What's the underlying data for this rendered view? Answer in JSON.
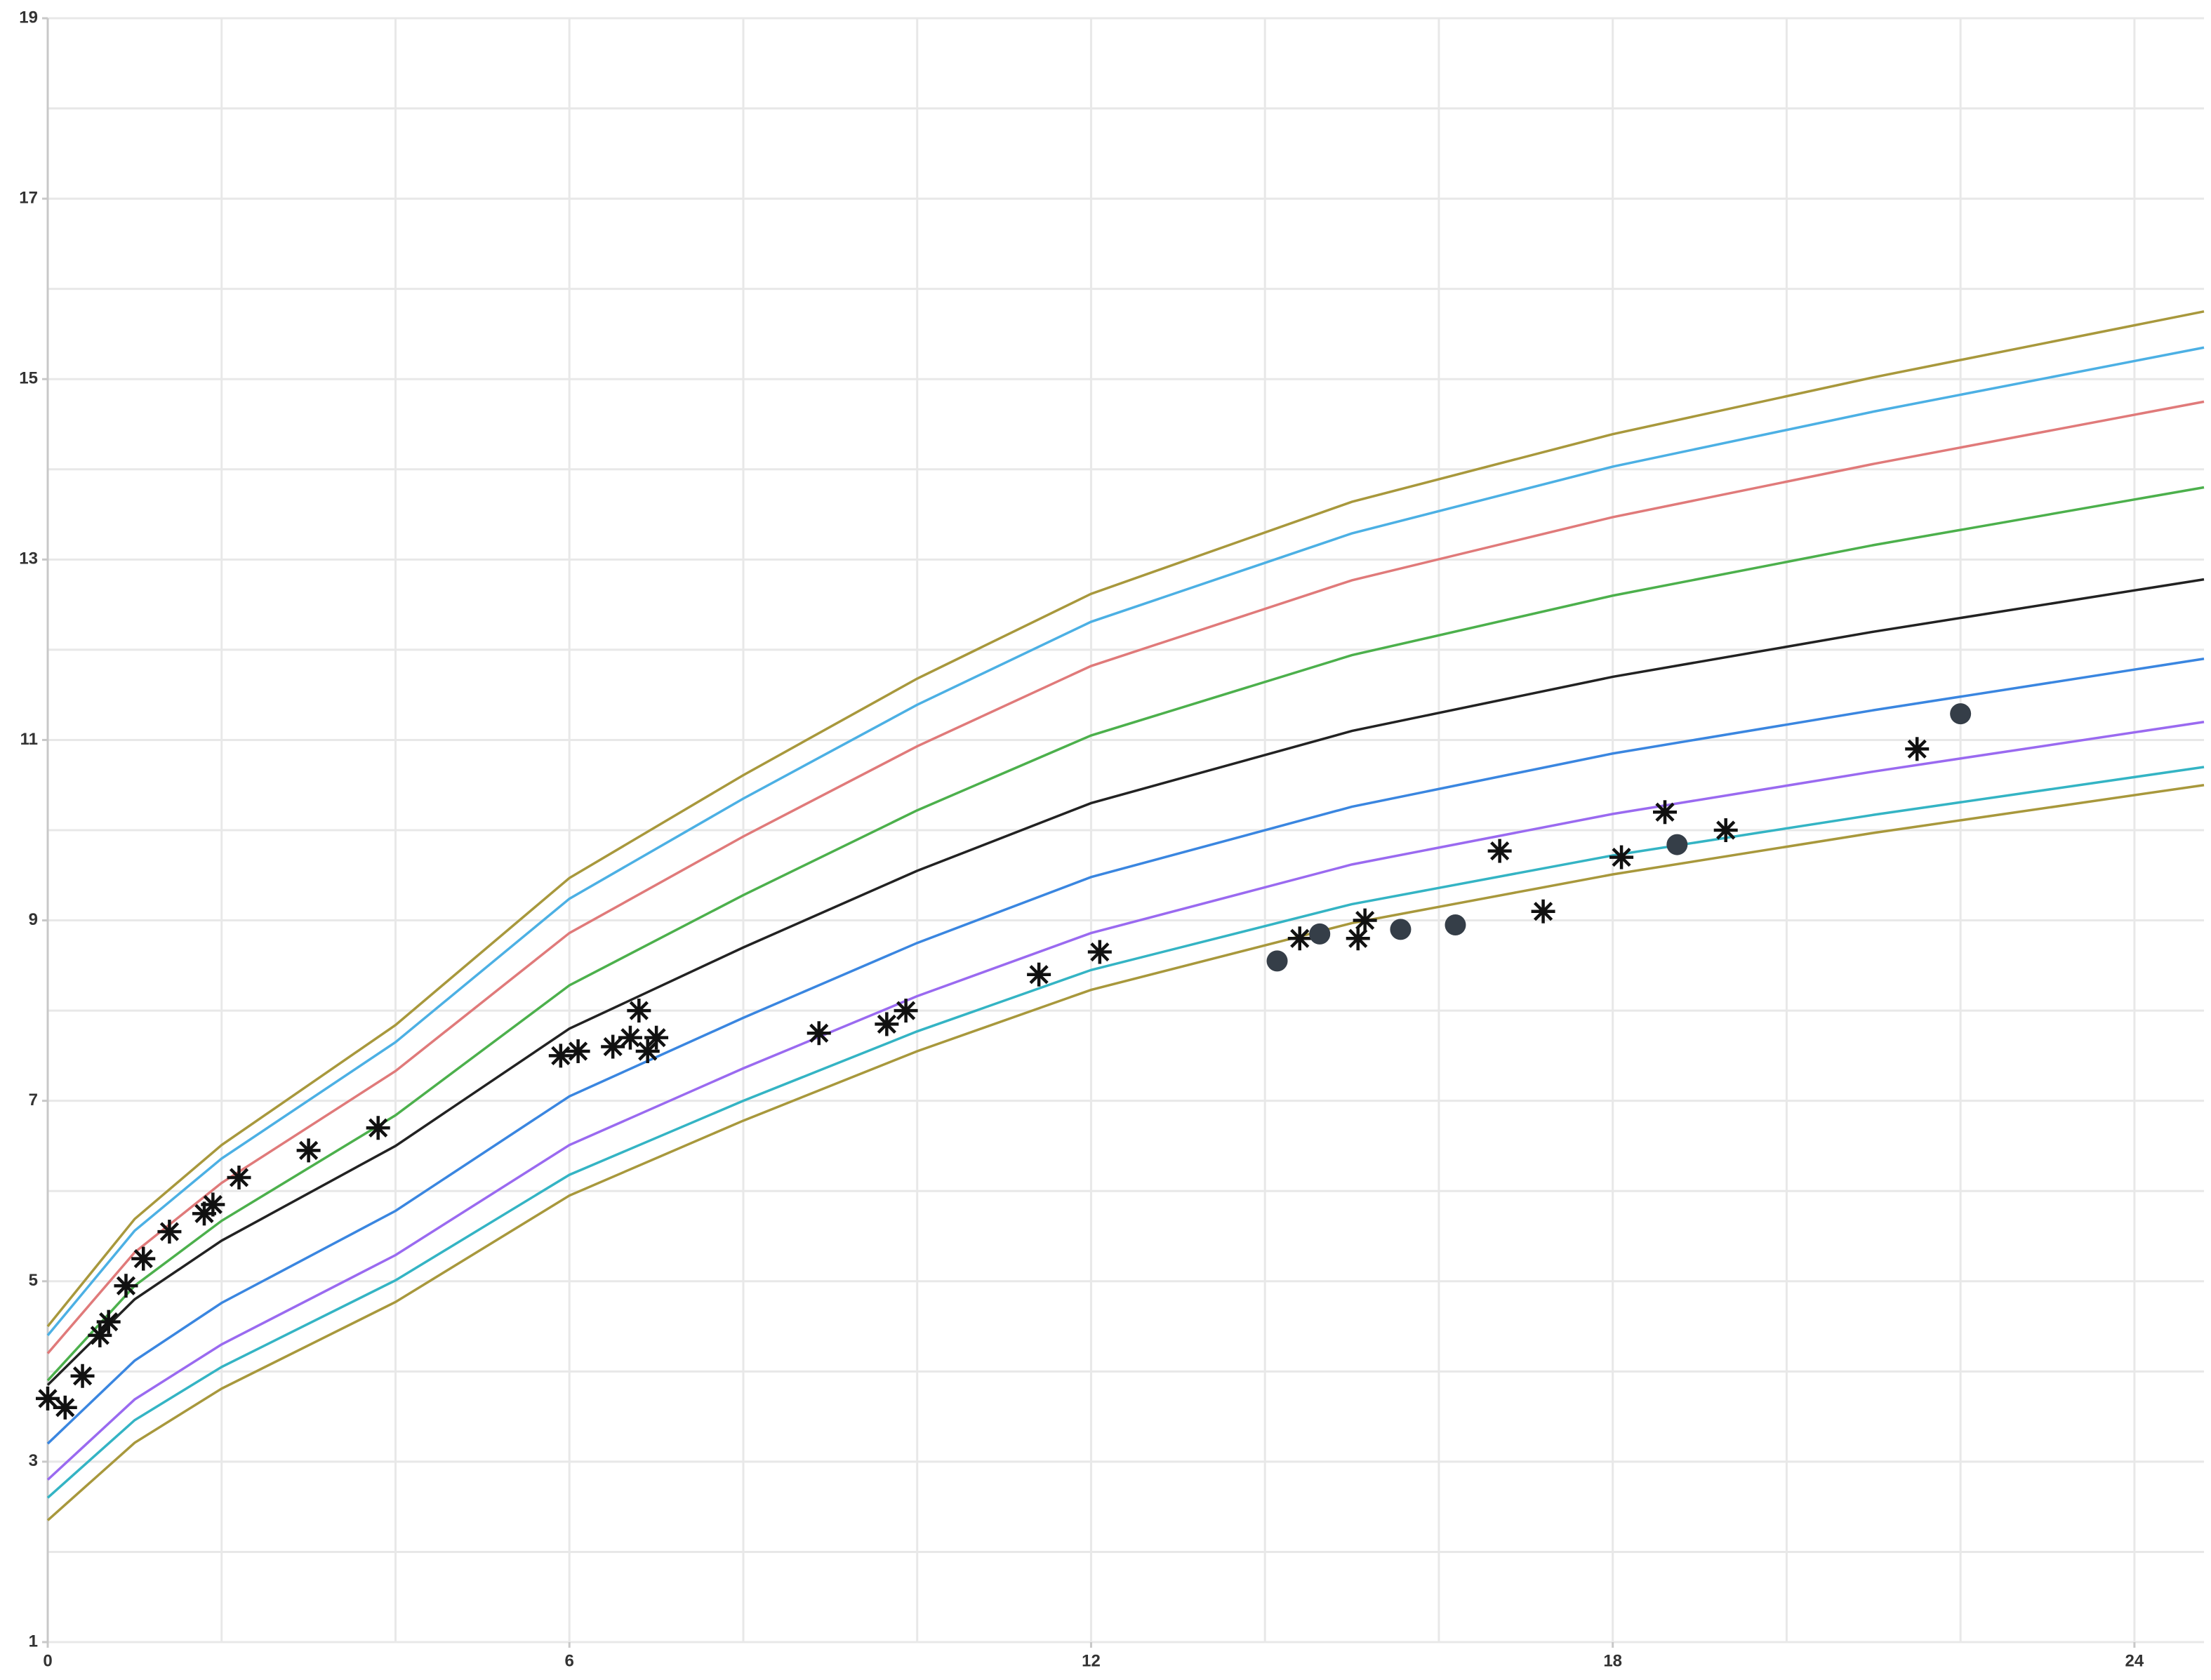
{
  "chart_data": {
    "type": "line",
    "x": [
      0,
      1,
      2,
      4,
      6,
      8,
      10,
      12,
      15,
      18,
      21,
      24.8
    ],
    "xlim": [
      0,
      24.8
    ],
    "xticks": [
      0,
      6,
      12,
      18,
      24
    ],
    "xgrid": [
      0,
      2,
      4,
      6,
      8,
      10,
      12,
      14,
      16,
      18,
      20,
      22,
      24
    ],
    "ylim": [
      1,
      19
    ],
    "yticks": [
      1,
      3,
      5,
      7,
      9,
      11,
      13,
      15,
      17,
      19
    ],
    "ygrid": [
      1,
      2,
      3,
      4,
      5,
      6,
      7,
      8,
      9,
      10,
      11,
      12,
      13,
      14,
      15,
      16,
      17,
      18,
      19
    ],
    "grid": true,
    "series": [
      {
        "color": "#a8983c",
        "values": [
          4.5,
          5.69,
          6.51,
          7.84,
          9.47,
          10.61,
          11.68,
          12.62,
          13.64,
          14.39,
          15.02,
          15.75
        ]
      },
      {
        "color": "#4cb0e4",
        "values": [
          4.4,
          5.56,
          6.36,
          7.65,
          9.24,
          10.35,
          11.39,
          12.31,
          13.29,
          14.03,
          14.64,
          15.35
        ]
      },
      {
        "color": "#e07a7a",
        "values": [
          4.2,
          5.32,
          6.09,
          7.33,
          8.86,
          9.93,
          10.93,
          11.82,
          12.77,
          13.47,
          14.06,
          14.75
        ]
      },
      {
        "color": "#4cb04c",
        "values": [
          3.9,
          4.95,
          5.67,
          6.84,
          8.28,
          9.28,
          10.22,
          11.05,
          11.94,
          12.6,
          13.16,
          13.8
        ]
      },
      {
        "color": "#222222",
        "values": [
          3.85,
          4.8,
          5.45,
          6.5,
          7.8,
          8.7,
          9.55,
          10.3,
          11.1,
          11.7,
          12.2,
          12.78
        ]
      },
      {
        "color": "#3a86e0",
        "values": [
          3.2,
          4.12,
          4.76,
          5.78,
          7.05,
          7.92,
          8.75,
          9.48,
          10.26,
          10.85,
          11.33,
          11.9
        ]
      },
      {
        "color": "#9a6af0",
        "values": [
          2.8,
          3.69,
          4.3,
          5.29,
          6.51,
          7.36,
          8.16,
          8.86,
          9.62,
          10.18,
          10.65,
          11.2
        ]
      },
      {
        "color": "#34b4c4",
        "values": [
          2.6,
          3.46,
          4.05,
          5.01,
          6.18,
          7.0,
          7.77,
          8.45,
          9.18,
          9.72,
          10.17,
          10.7
        ]
      },
      {
        "color": "#a8983c",
        "values": [
          2.35,
          3.21,
          3.81,
          4.77,
          5.95,
          6.78,
          7.55,
          8.23,
          8.97,
          9.51,
          9.97,
          10.5
        ]
      }
    ],
    "points": [
      {
        "marker": "asterisk",
        "color": "#111111",
        "x": [
          0,
          0.2,
          0.4,
          0.6,
          0.7,
          0.9,
          1.1,
          1.4,
          1.8,
          1.9,
          2.2,
          3.0,
          3.8,
          5.9,
          6.1,
          6.5,
          6.7,
          6.8,
          6.9,
          7.0,
          8.87,
          9.65,
          9.87,
          11.4,
          12.1,
          14.4,
          15.07,
          15.15,
          16.7,
          17.2,
          18.1,
          18.6,
          19.3,
          21.5
        ],
        "values": [
          3.7,
          3.6,
          3.95,
          4.4,
          4.55,
          4.95,
          5.25,
          5.55,
          5.75,
          5.85,
          6.15,
          6.45,
          6.7,
          7.5,
          7.55,
          7.6,
          7.7,
          8.0,
          7.55,
          7.7,
          7.75,
          7.85,
          8.0,
          8.4,
          8.65,
          8.8,
          8.8,
          9.0,
          9.77,
          9.1,
          9.7,
          10.2,
          10.0,
          10.9
        ]
      },
      {
        "marker": "circle",
        "color": "#353e48",
        "x": [
          14.14,
          14.63,
          15.56,
          16.19,
          18.74,
          22.0
        ],
        "values": [
          8.55,
          8.85,
          8.9,
          8.95,
          9.84,
          11.29
        ]
      }
    ]
  }
}
